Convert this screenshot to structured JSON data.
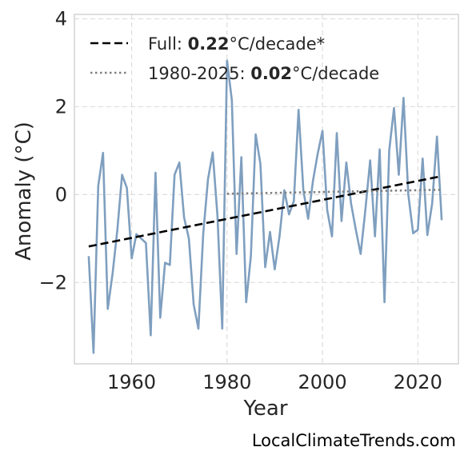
{
  "chart_data": {
    "type": "line",
    "xlabel": "Year",
    "ylabel": "Anomaly (°C)",
    "xlim": [
      1948,
      2028.5
    ],
    "ylim": [
      -3.85,
      4.1
    ],
    "xticks": [
      1960,
      1980,
      2000,
      2020
    ],
    "yticks": [
      4,
      2,
      0,
      -2
    ],
    "ytick_labels": [
      "4",
      "2",
      "0",
      "−2"
    ],
    "grid": true,
    "legend_position": "top-left",
    "series": [
      {
        "color": "#7f9fbf",
        "style": "solid",
        "x": [
          1951,
          1952,
          1953,
          1954,
          1955,
          1956,
          1957,
          1958,
          1959,
          1960,
          1961,
          1962,
          1963,
          1964,
          1965,
          1966,
          1967,
          1968,
          1969,
          1970,
          1971,
          1972,
          1973,
          1974,
          1975,
          1976,
          1977,
          1978,
          1979,
          1980,
          1981,
          1982,
          1983,
          1984,
          1985,
          1986,
          1987,
          1988,
          1989,
          1990,
          1991,
          1992,
          1993,
          1994,
          1995,
          1996,
          1997,
          1998,
          1999,
          2000,
          2001,
          2002,
          2003,
          2004,
          2005,
          2006,
          2007,
          2008,
          2009,
          2010,
          2011,
          2012,
          2013,
          2014,
          2015,
          2016,
          2017,
          2018,
          2019,
          2020,
          2021,
          2022,
          2023,
          2024,
          2025
        ],
        "values": [
          -1.4,
          -3.6,
          0.2,
          0.95,
          -2.6,
          -1.8,
          -0.8,
          0.45,
          0.15,
          -1.45,
          -0.9,
          -1.0,
          -1.1,
          -3.2,
          0.5,
          -2.8,
          -1.55,
          -1.6,
          0.45,
          0.73,
          -0.52,
          -1.0,
          -2.5,
          -3.05,
          -0.9,
          0.35,
          0.96,
          -0.5,
          -3.05,
          3.05,
          2.15,
          -1.35,
          0.85,
          -2.45,
          -1.4,
          1.37,
          0.7,
          -1.65,
          -0.85,
          -1.7,
          -0.95,
          0.1,
          -0.45,
          -0.15,
          1.93,
          0.1,
          -0.55,
          0.3,
          0.93,
          1.45,
          -0.35,
          -0.95,
          1.4,
          -0.6,
          0.73,
          -0.2,
          -0.8,
          -1.35,
          -0.35,
          0.78,
          -0.95,
          1.03,
          -2.45,
          1.0,
          1.97,
          0.45,
          2.2,
          0.0,
          -0.88,
          -0.8,
          0.82,
          -0.92,
          -0.2,
          1.32,
          -0.58
        ]
      },
      {
        "color": "#000000",
        "style": "dashed",
        "x": [
          1951,
          2025
        ],
        "values": [
          -1.18,
          0.42
        ],
        "legend_prefix": "Full: ",
        "legend_value": "0.22",
        "legend_suffix": "°C/decade*"
      },
      {
        "color": "#808080",
        "style": "dotted",
        "x": [
          1980,
          2025
        ],
        "values": [
          0.02,
          0.11
        ],
        "legend_prefix": "1980-2025: ",
        "legend_value": "0.02",
        "legend_suffix": "°C/decade"
      }
    ]
  },
  "watermark": "LocalClimateTrends.com"
}
